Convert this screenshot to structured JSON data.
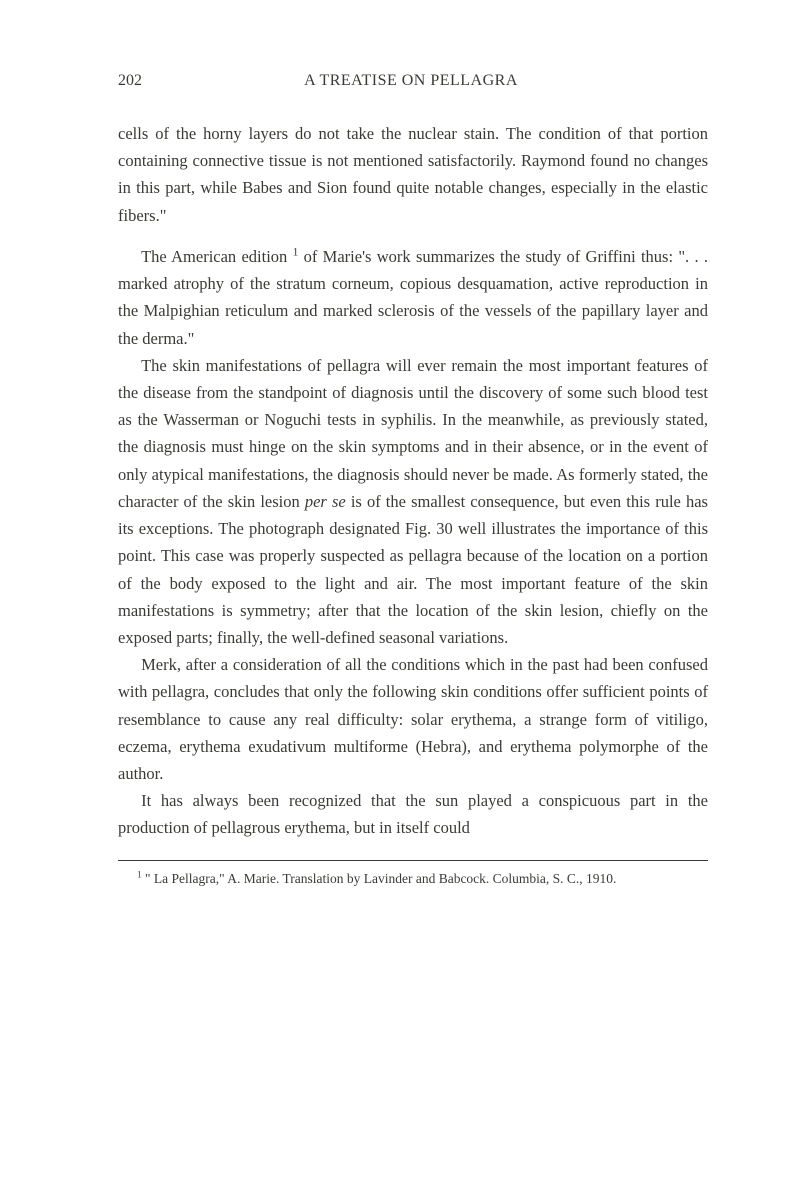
{
  "page": {
    "number": "202",
    "running_title": "A TREATISE ON PELLAGRA"
  },
  "paragraphs": {
    "p1": "cells of the horny layers do not take the nuclear stain. The condition of that portion containing connective tissue is not mentioned satisfactorily. Raymond found no changes in this part, while Babes and Sion found quite notable changes, especially in the elastic fibers.\"",
    "p2a": "The American edition ",
    "p2sup": "1",
    "p2b": " of Marie's work summarizes the study of Griffini thus: \". . . marked atrophy of the stratum corneum, copious desquamation, active reproduction in the Malpighian reticulum and marked sclerosis of the vessels of the papillary layer and the derma.\"",
    "p3": "The skin manifestations of pellagra will ever remain the most important features of the disease from the standpoint of diagnosis until the discovery of some such blood test as the Wasserman or Noguchi tests in syphilis. In the meanwhile, as previously stated, the diagnosis must hinge on the skin symptoms and in their absence, or in the event of only atypical manifestations, the diagnosis should never be made. As formerly stated, the character of the skin lesion ",
    "p3_italic": "per se",
    "p3b": " is of the smallest consequence, but even this rule has its exceptions. The photograph designated Fig. 30 well illustrates the importance of this point. This case was properly suspected as pellagra because of the location on a portion of the body exposed to the light and air. The most important feature of the skin manifestations is symmetry; after that the location of the skin lesion, chiefly on the exposed parts; finally, the well-defined seasonal variations.",
    "p4": "Merk, after a consideration of all the conditions which in the past had been confused with pellagra, concludes that only the following skin conditions offer sufficient points of resemblance to cause any real difficulty: solar erythema, a strange form of vitiligo, eczema, erythema exudativum multiforme (Hebra), and erythema polymorphe of the author.",
    "p5": "It has always been recognized that the sun played a conspicuous part in the production of pellagrous erythema, but in itself could"
  },
  "footnote": {
    "sup": "1",
    "text": " \" La Pellagra,\" A. Marie. Translation by Lavinder and Babcock. Columbia, S. C., 1910."
  }
}
